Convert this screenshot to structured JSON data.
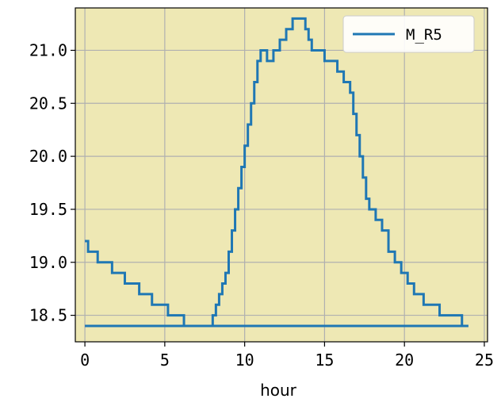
{
  "chart_data": {
    "type": "line",
    "xlabel": "hour",
    "ylabel": "",
    "title": "",
    "xlim": [
      -0.6,
      25.2
    ],
    "ylim": [
      18.25,
      21.4
    ],
    "x_ticks": [
      0,
      5,
      10,
      15,
      20,
      25
    ],
    "x_tick_labels": [
      "0",
      "5",
      "10",
      "15",
      "20",
      "25"
    ],
    "y_ticks": [
      18.5,
      19.0,
      19.5,
      20.0,
      20.5,
      21.0
    ],
    "y_tick_labels": [
      "18.5",
      "19.0",
      "19.5",
      "20.0",
      "20.5",
      "21.0"
    ],
    "grid": true,
    "legend_position": "top-right",
    "background_color": "#eee8b4",
    "series": [
      {
        "name": "M_R5",
        "color": "#1f77b4",
        "step": "post",
        "x": [
          0,
          0.2,
          0.8,
          1.7,
          2.5,
          3.4,
          4.2,
          5.2,
          6.2,
          8.0,
          8.2,
          8.4,
          8.6,
          8.8,
          9.0,
          9.2,
          9.4,
          9.6,
          9.8,
          10.0,
          10.2,
          10.4,
          10.6,
          10.8,
          11.0,
          11.4,
          11.8,
          12.2,
          12.6,
          13.0,
          13.8,
          14.0,
          14.2,
          14.6,
          15.0,
          15.8,
          16.2,
          16.6,
          16.8,
          17.0,
          17.2,
          17.4,
          17.6,
          17.8,
          18.2,
          18.6,
          19.0,
          19.4,
          19.8,
          20.2,
          20.6,
          21.2,
          22.2,
          23.0,
          23.6
        ],
        "values": [
          19.2,
          19.1,
          19.0,
          18.9,
          18.8,
          18.7,
          18.6,
          18.5,
          18.4,
          18.5,
          18.6,
          18.7,
          18.8,
          18.9,
          19.1,
          19.3,
          19.5,
          19.7,
          19.9,
          20.1,
          20.3,
          20.5,
          20.7,
          20.9,
          21.0,
          20.9,
          21.0,
          21.1,
          21.2,
          21.3,
          21.2,
          21.1,
          21.0,
          21.0,
          20.9,
          20.8,
          20.7,
          20.6,
          20.4,
          20.2,
          20.0,
          19.8,
          19.6,
          19.5,
          19.4,
          19.3,
          19.1,
          19.0,
          18.9,
          18.8,
          18.7,
          18.6,
          18.5,
          18.5,
          18.4
        ],
        "end_x": 24.0
      },
      {
        "name": "",
        "color": "#1f77b4",
        "step": "post",
        "x": [
          0
        ],
        "values": [
          18.4
        ],
        "end_x": 24.0
      }
    ]
  }
}
